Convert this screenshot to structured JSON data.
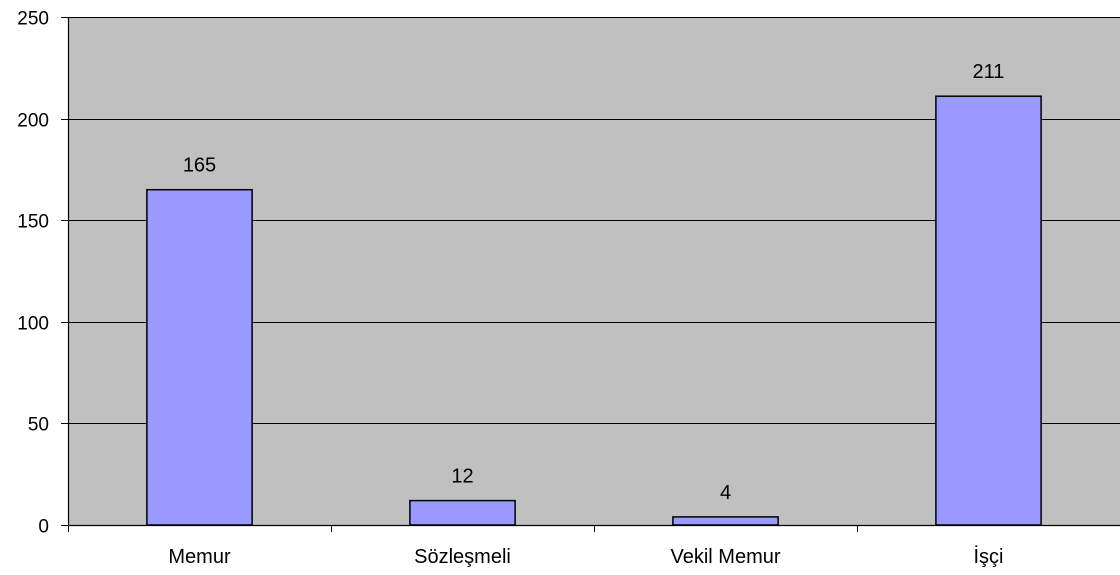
{
  "chart_data": {
    "type": "bar",
    "categories": [
      "Memur",
      "Sözleşmeli",
      "Vekil Memur",
      "İşçi"
    ],
    "values": [
      165,
      12,
      4,
      211
    ],
    "data_labels": [
      "165",
      "12",
      "4",
      "211"
    ],
    "title": "",
    "xlabel": "",
    "ylabel": "",
    "ylim": [
      0,
      250
    ],
    "yticks": [
      0,
      50,
      100,
      150,
      200,
      250
    ],
    "ytick_labels": [
      "0",
      "50",
      "100",
      "150",
      "200",
      "250"
    ],
    "grid": "horizontal",
    "legend": "none",
    "colors": {
      "plot_background": "#c0c0c0",
      "bar_fill": "#9999ff",
      "bar_stroke": "#000000",
      "gridline": "#000000",
      "axis": "#000000"
    }
  }
}
